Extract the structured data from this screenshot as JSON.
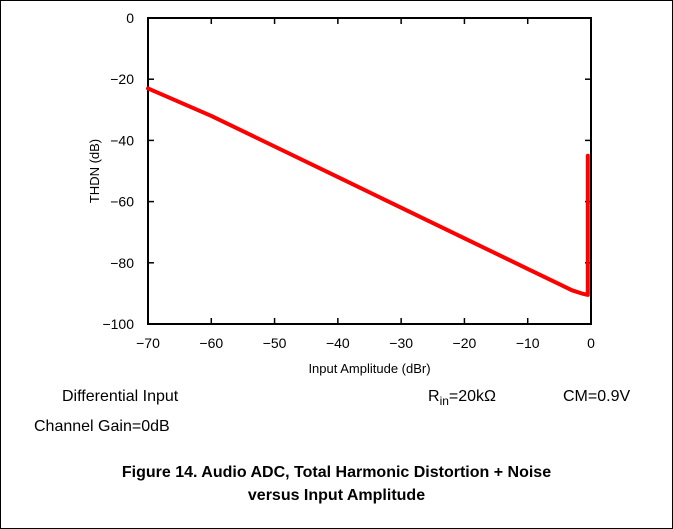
{
  "chart_data": {
    "type": "line",
    "xlabel": "Input Amplitude (dBr)",
    "ylabel": "THDN (dB)",
    "xlim": [
      -70,
      0
    ],
    "ylim": [
      -100,
      0
    ],
    "xticks": [
      "−70",
      "−60",
      "−50",
      "−40",
      "−30",
      "−20",
      "−10",
      "0"
    ],
    "xtick_values": [
      -70,
      -60,
      -50,
      -40,
      -30,
      -20,
      -10,
      0
    ],
    "yticks": [
      "0",
      "−20",
      "−40",
      "−60",
      "−80",
      "−100"
    ],
    "ytick_values": [
      0,
      -20,
      -40,
      -60,
      -80,
      -100
    ],
    "grid": false,
    "series": [
      {
        "color": "#ff0000",
        "x": [
          -70,
          -60,
          -50,
          -40,
          -30,
          -20,
          -10,
          -5,
          -3,
          -1.5,
          -0.5,
          -0.5
        ],
        "y": [
          -23,
          -32,
          -42,
          -52,
          -62,
          -72,
          -82,
          -87,
          -89,
          -90,
          -90.5,
          -45
        ]
      }
    ]
  },
  "conditions": {
    "left1": "Differential Input",
    "left2": "Channel Gain=0dB",
    "rin_base": "R",
    "rin_sub": "in",
    "rin_rest": "=20kΩ",
    "cm": "CM=0.9V"
  },
  "figure": {
    "line1": "Figure 14. Audio ADC, Total Harmonic Distortion + Noise",
    "line2": "versus Input Amplitude"
  }
}
